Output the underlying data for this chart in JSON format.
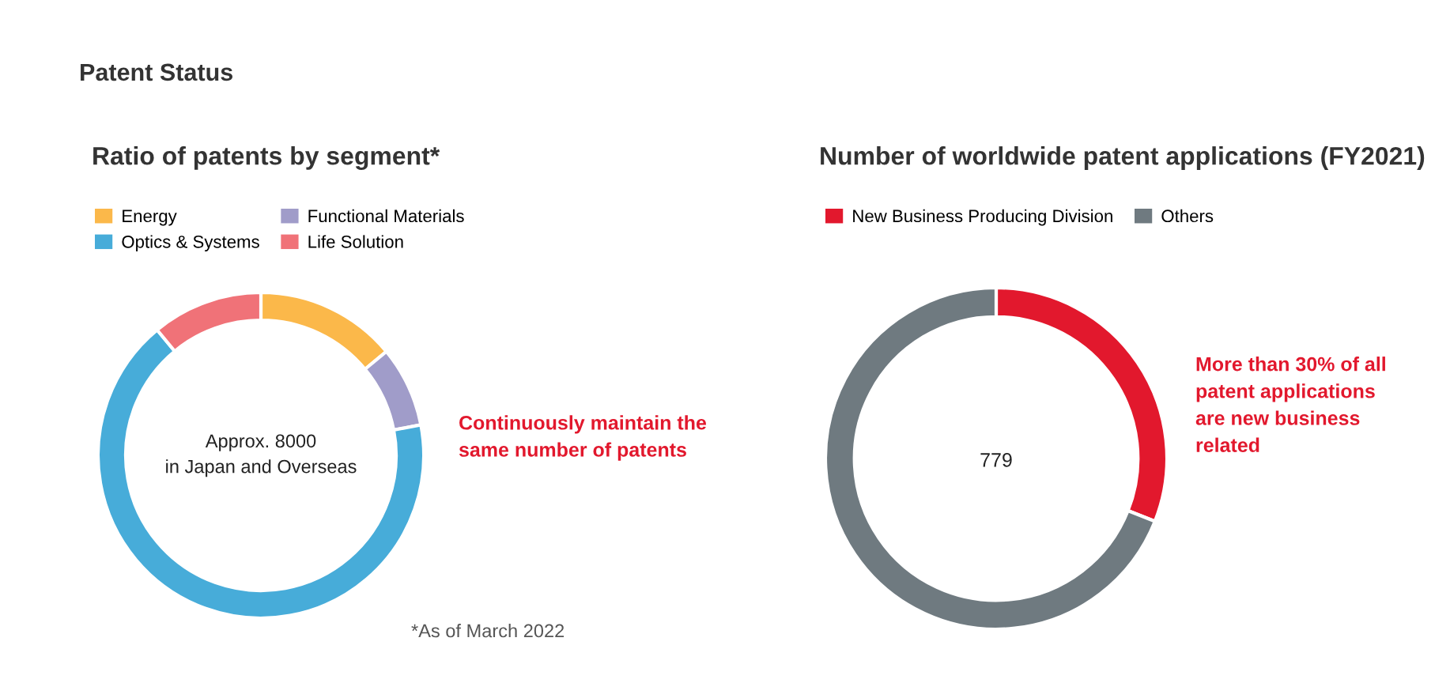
{
  "chart_data": [
    {
      "type": "donut",
      "title": "Ratio of patents by segment*",
      "categories": [
        "Energy",
        "Functional Materials",
        "Optics & Systems",
        "Life Solution"
      ],
      "values": [
        14,
        8,
        67,
        11
      ],
      "colors": [
        "#fbb84a",
        "#a09cc9",
        "#47acd9",
        "#f07278"
      ],
      "legend": "top",
      "annotations": [
        "Patent Status",
        "Approx. 8000\nin Japan and Overseas",
        "Continuously maintain the\nsame number of patents",
        "*As of March 2022"
      ]
    },
    {
      "type": "donut",
      "title": "Number of worldwide patent applications (FY2021)",
      "categories": [
        "New Business Producing Division",
        "Others"
      ],
      "values": [
        31,
        69
      ],
      "colors": [
        "#e2182d",
        "#6f7a80"
      ],
      "legend": "top",
      "annotations": [
        "779",
        "More than 30% of all\npatent applications\nare new business\nrelated"
      ]
    }
  ]
}
